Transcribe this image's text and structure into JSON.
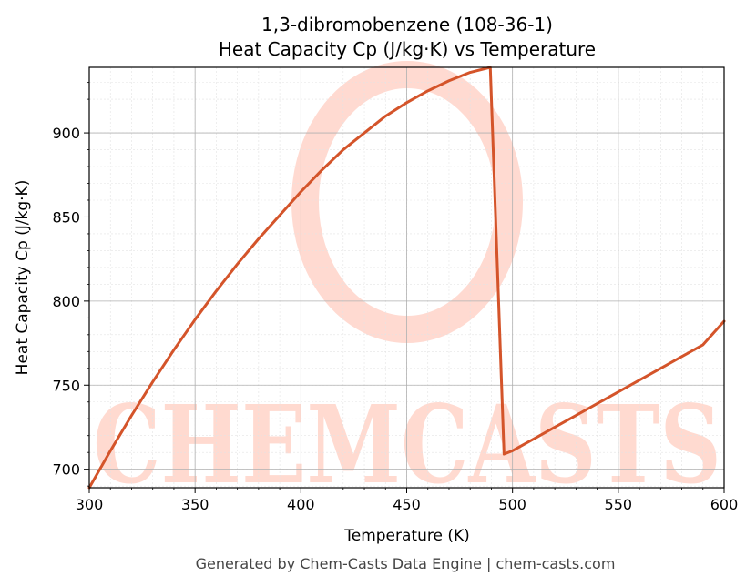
{
  "chart_data": {
    "type": "line",
    "title": "1,3-dibromobenzene (108-36-1)",
    "subtitle": "Heat Capacity Cp (J/kg·K) vs Temperature",
    "xlabel": "Temperature (K)",
    "ylabel": "Heat Capacity Cp (J/kg·K)",
    "xlim": [
      300,
      600
    ],
    "ylim": [
      689,
      939
    ],
    "x_ticks": [
      300,
      350,
      400,
      450,
      500,
      550,
      600
    ],
    "y_ticks": [
      700,
      750,
      800,
      850,
      900
    ],
    "grid": true,
    "legend": "none",
    "series": [
      {
        "color": "#d4542a",
        "points": [
          [
            300,
            689
          ],
          [
            310,
            711
          ],
          [
            320,
            732
          ],
          [
            330,
            752
          ],
          [
            340,
            771
          ],
          [
            350,
            789
          ],
          [
            360,
            806
          ],
          [
            370,
            822
          ],
          [
            380,
            837
          ],
          [
            390,
            851
          ],
          [
            400,
            865
          ],
          [
            410,
            878
          ],
          [
            420,
            890
          ],
          [
            430,
            900
          ],
          [
            440,
            910
          ],
          [
            450,
            918
          ],
          [
            460,
            925
          ],
          [
            470,
            931
          ],
          [
            480,
            936
          ],
          [
            489.5,
            939
          ],
          [
            496,
            709
          ],
          [
            500,
            711
          ],
          [
            510,
            718
          ],
          [
            520,
            725
          ],
          [
            530,
            732
          ],
          [
            540,
            739
          ],
          [
            550,
            746
          ],
          [
            560,
            753
          ],
          [
            570,
            760
          ],
          [
            580,
            767
          ],
          [
            590,
            774
          ],
          [
            600,
            788
          ]
        ]
      }
    ]
  },
  "watermark": {
    "text": "CHEMCASTS",
    "color": "#ffd6cc"
  },
  "footer": "Generated by Chem-Casts Data Engine | chem-casts.com"
}
